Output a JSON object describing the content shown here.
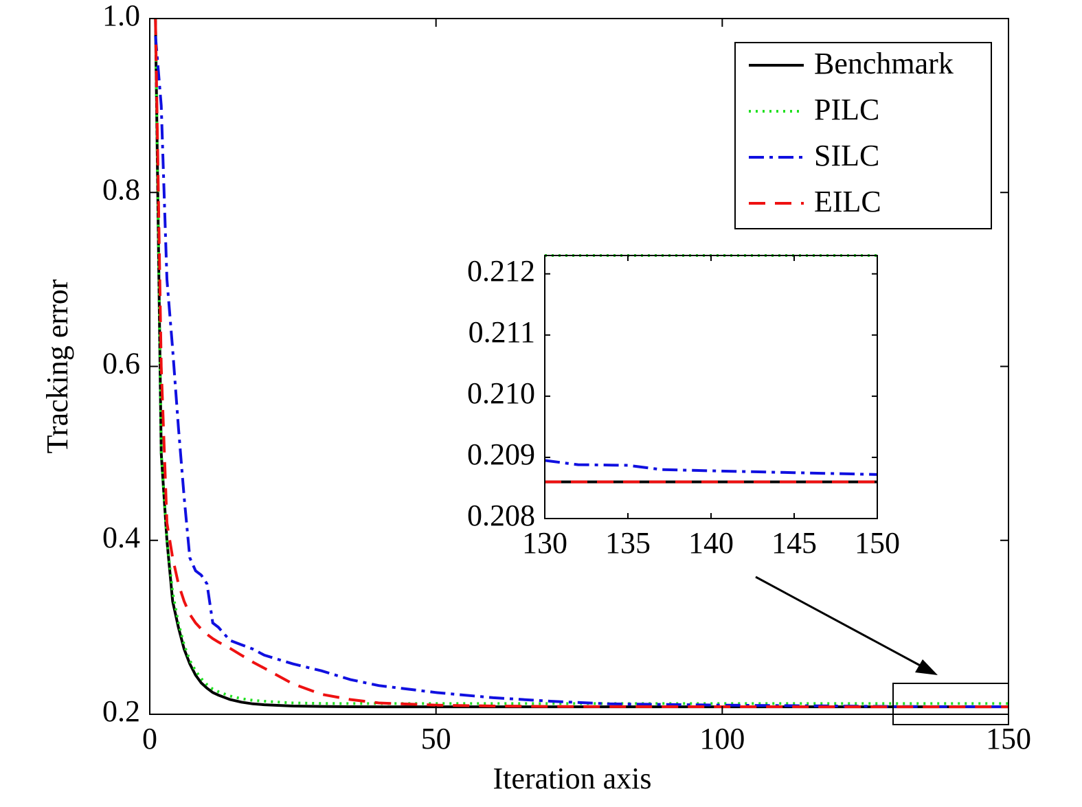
{
  "chart_data": [
    {
      "type": "line",
      "xlabel": "Iteration axis",
      "ylabel": "Tracking error",
      "xlim": [
        0,
        150
      ],
      "ylim": [
        0.2,
        1.0
      ],
      "xticks": [
        0,
        50,
        100,
        150
      ],
      "yticks": [
        0.2,
        0.4,
        0.6,
        0.8,
        {
          "value": 1,
          "label": "1.0"
        }
      ],
      "legend": "upper right",
      "x": [
        1,
        2,
        3,
        4,
        5,
        6,
        7,
        8,
        9,
        10,
        11,
        12,
        14,
        16,
        18,
        20,
        25,
        30,
        35,
        40,
        50,
        60,
        70,
        80,
        100,
        120,
        130,
        135,
        137,
        140,
        145,
        150
      ],
      "series": [
        {
          "name": "Benchmark",
          "color": "#000000",
          "style": "solid",
          "values": [
            1.0,
            0.5,
            0.4,
            0.33,
            0.3,
            0.275,
            0.258,
            0.245,
            0.236,
            0.23,
            0.225,
            0.222,
            0.217,
            0.214,
            0.212,
            0.211,
            0.2095,
            0.209,
            0.2087,
            0.2086,
            0.2086,
            0.2086,
            0.2086,
            0.2086,
            0.2086,
            0.2086,
            0.2086,
            0.2086,
            0.2086,
            0.2086,
            0.2086,
            0.2086
          ]
        },
        {
          "name": "PILC",
          "color": "#22e022",
          "style": "dotted",
          "values": [
            1.0,
            0.5,
            0.4,
            0.34,
            0.305,
            0.28,
            0.262,
            0.25,
            0.241,
            0.234,
            0.229,
            0.226,
            0.221,
            0.218,
            0.216,
            0.215,
            0.213,
            0.2125,
            0.2123,
            0.2123,
            0.2123,
            0.2123,
            0.2123,
            0.2123,
            0.2123,
            0.2123,
            0.2123,
            0.2123,
            0.2123,
            0.2123,
            0.2123,
            0.2123
          ]
        },
        {
          "name": "SILC",
          "color": "#1010e0",
          "style": "dashdot",
          "values": [
            0.98,
            0.9,
            0.7,
            0.62,
            0.53,
            0.45,
            0.38,
            0.365,
            0.36,
            0.35,
            0.305,
            0.3,
            0.285,
            0.28,
            0.275,
            0.268,
            0.258,
            0.25,
            0.24,
            0.233,
            0.225,
            0.219,
            0.215,
            0.212,
            0.2105,
            0.2095,
            0.20895,
            0.20887,
            0.2088,
            0.20878,
            0.20875,
            0.20872
          ]
        },
        {
          "name": "EILC",
          "color": "#ee1111",
          "style": "dashed",
          "values": [
            1.0,
            0.6,
            0.42,
            0.38,
            0.35,
            0.33,
            0.315,
            0.305,
            0.298,
            0.292,
            0.287,
            0.283,
            0.276,
            0.268,
            0.26,
            0.253,
            0.235,
            0.223,
            0.217,
            0.213,
            0.2105,
            0.2095,
            0.209,
            0.2088,
            0.2087,
            0.2086,
            0.2086,
            0.2086,
            0.2086,
            0.2086,
            0.2086,
            0.2086
          ]
        }
      ]
    },
    {
      "type": "line",
      "xlim": [
        130,
        150
      ],
      "ylim": [
        0.208,
        0.2123
      ],
      "xticks": [
        130,
        135,
        140,
        145,
        150
      ],
      "yticks": [
        0.208,
        0.209,
        {
          "value": 0.21,
          "label": "0.210"
        },
        0.211,
        0.212
      ],
      "x": [
        130,
        132,
        135,
        137,
        140,
        145,
        150
      ],
      "series": [
        {
          "name": "Benchmark",
          "color": "#000000",
          "style": "solid",
          "values": [
            0.2086,
            0.2086,
            0.2086,
            0.2086,
            0.2086,
            0.2086,
            0.2086
          ]
        },
        {
          "name": "PILC",
          "color": "#22e022",
          "style": "dotted",
          "values": [
            0.2123,
            0.2123,
            0.2123,
            0.2123,
            0.2123,
            0.2123,
            0.2123
          ]
        },
        {
          "name": "SILC",
          "color": "#1010e0",
          "style": "dashdot",
          "values": [
            0.20895,
            0.20888,
            0.20887,
            0.2088,
            0.20878,
            0.20875,
            0.20872
          ]
        },
        {
          "name": "EILC",
          "color": "#ee1111",
          "style": "dashed",
          "values": [
            0.2086,
            0.2086,
            0.2086,
            0.2086,
            0.2086,
            0.2086,
            0.2086
          ]
        }
      ]
    }
  ]
}
